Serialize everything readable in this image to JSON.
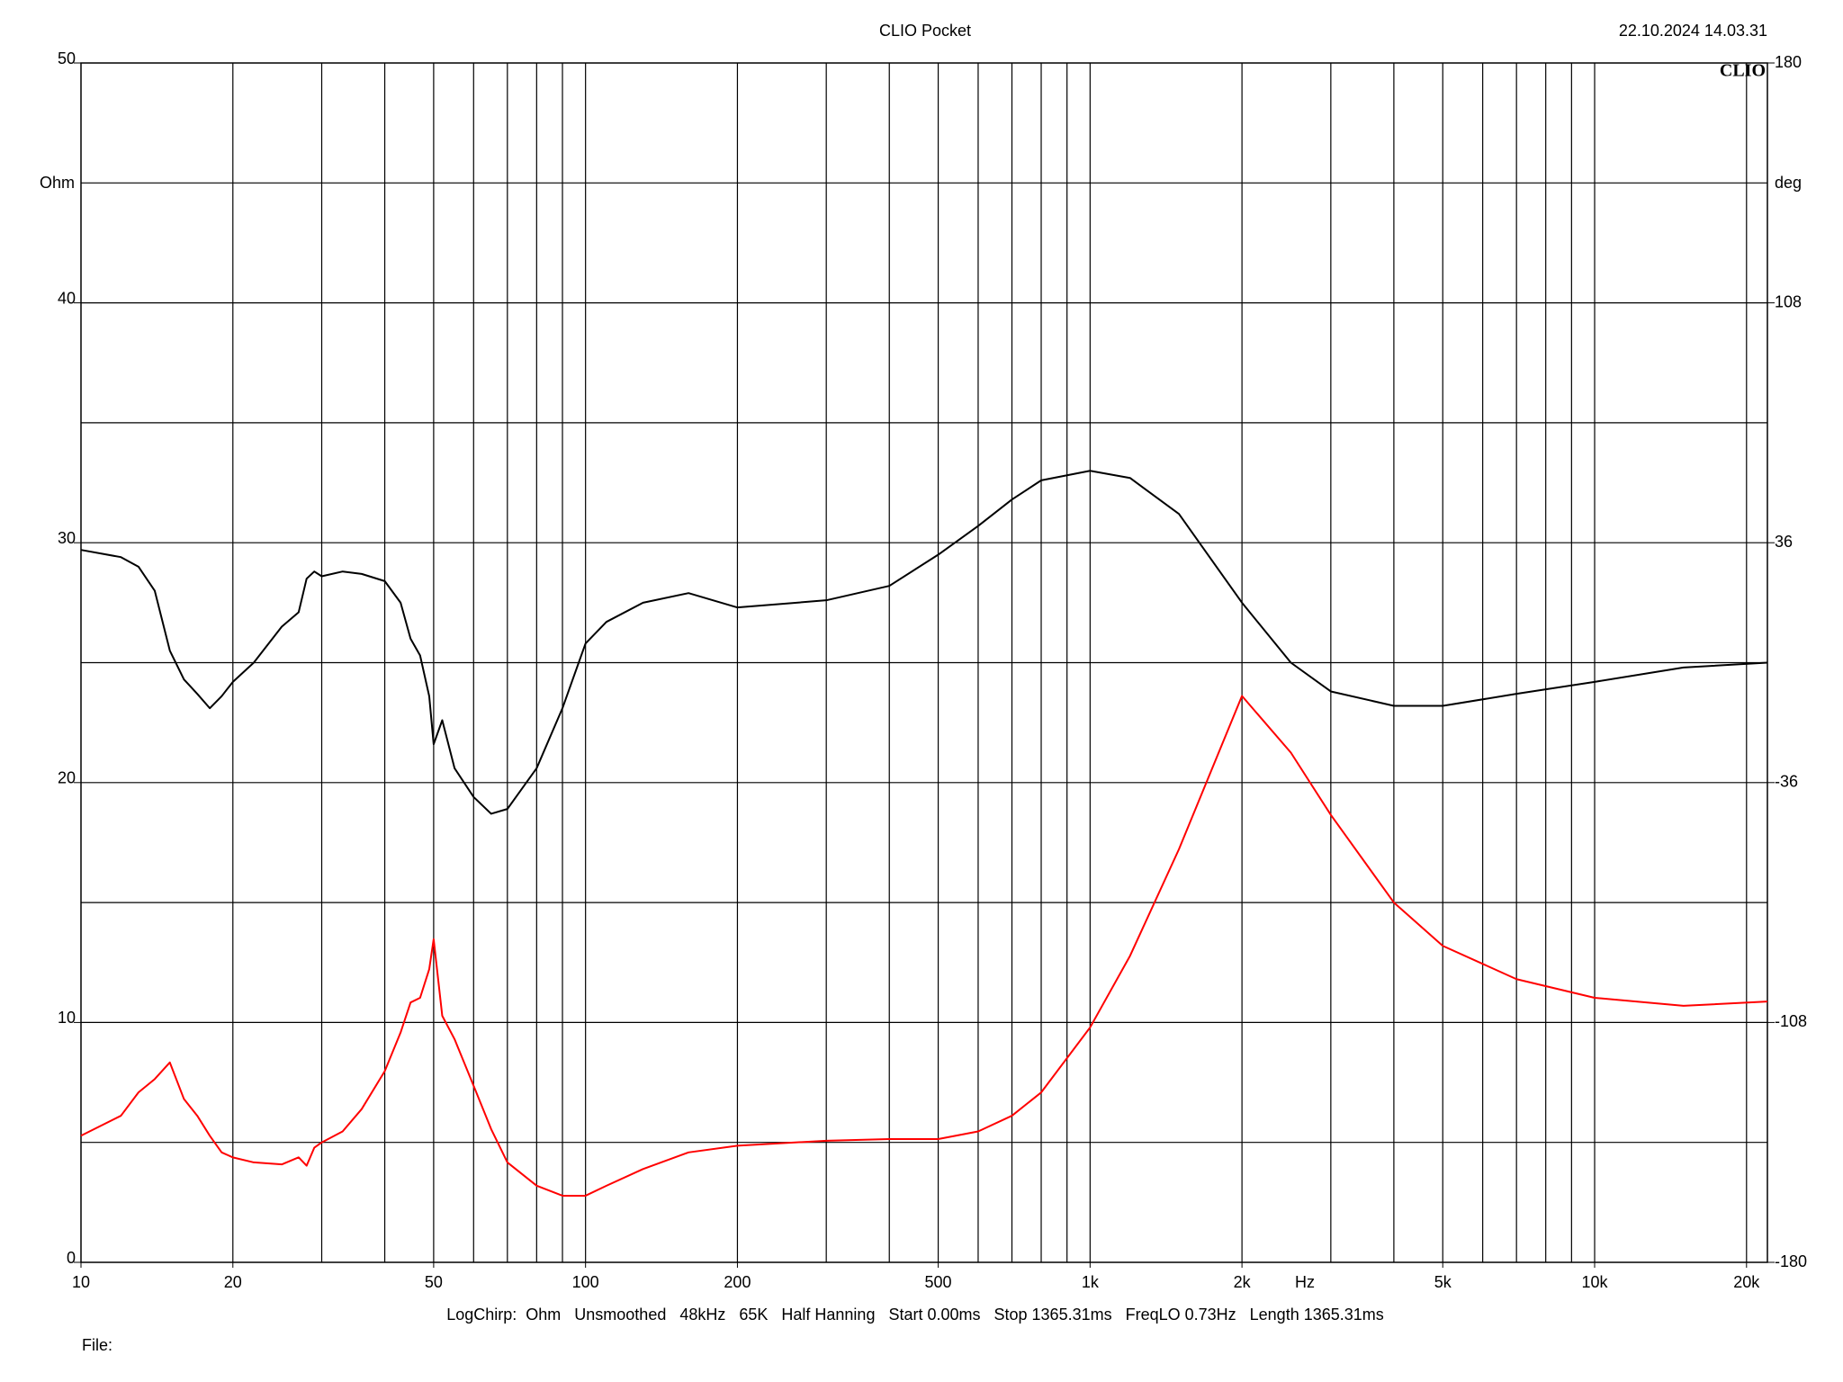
{
  "header": {
    "title": "CLIO Pocket",
    "date": "22.10.2024 14.03.31",
    "logo": "CLIO"
  },
  "chart_data": {
    "type": "line",
    "xscale": "log",
    "grid": true,
    "x": [
      10,
      12,
      13,
      14,
      15,
      16,
      17,
      18,
      19,
      20,
      22,
      25,
      27,
      28,
      29,
      30,
      33,
      36,
      40,
      43,
      45,
      47,
      49,
      50,
      52,
      55,
      60,
      65,
      70,
      80,
      90,
      100,
      110,
      130,
      160,
      200,
      300,
      400,
      500,
      600,
      700,
      800,
      1000,
      1200,
      1500,
      2000,
      2500,
      3000,
      4000,
      5000,
      7000,
      10000,
      15000,
      22000
    ],
    "series": [
      {
        "color": "#000000",
        "values": [
          29.7,
          29.4,
          29.0,
          28.0,
          25.5,
          24.3,
          23.7,
          23.1,
          23.6,
          24.2,
          25.0,
          26.5,
          27.1,
          28.5,
          28.8,
          28.6,
          28.8,
          28.7,
          28.4,
          27.5,
          26.0,
          25.3,
          23.6,
          21.6,
          22.6,
          20.6,
          19.4,
          18.7,
          18.9,
          20.6,
          23.1,
          25.8,
          26.7,
          27.5,
          27.9,
          27.3,
          27.6,
          28.2,
          29.5,
          30.7,
          31.8,
          32.6,
          33.0,
          32.7,
          31.2,
          27.5,
          25.0,
          23.8,
          23.2,
          23.2,
          23.7,
          24.2,
          24.8,
          25.0
        ]
      },
      {
        "color": "#ff0000",
        "axis": "y2",
        "values": [
          -142,
          -136,
          -129,
          -125,
          -120,
          -131,
          -136,
          -142,
          -147,
          -148.5,
          -150,
          -150.6,
          -148.5,
          -151,
          -145.6,
          -144,
          -140.7,
          -134,
          -122.6,
          -111,
          -102,
          -100.6,
          -92,
          -83,
          -106,
          -113,
          -127,
          -140,
          -150,
          -157,
          -160,
          -160,
          -157,
          -152,
          -147,
          -145,
          -143.5,
          -143,
          -143,
          -140.7,
          -136,
          -129,
          -109.5,
          -88,
          -56,
          -10,
          -27,
          -45.7,
          -72,
          -85,
          -95,
          -100.6,
          -103,
          -101.7
        ]
      }
    ],
    "xlim": [
      10,
      22000
    ],
    "xticks": [
      10,
      20,
      50,
      100,
      200,
      500,
      {
        "value": 1000,
        "label": "1k"
      },
      {
        "value": 2000,
        "label": "2k"
      },
      {
        "value": 5000,
        "label": "5k"
      },
      {
        "value": 10000,
        "label": "10k"
      },
      {
        "value": 20000,
        "label": "20k"
      }
    ],
    "xgrid": [
      20,
      30,
      40,
      50,
      60,
      70,
      80,
      90,
      100,
      200,
      300,
      400,
      500,
      600,
      700,
      800,
      900,
      1000,
      2000,
      3000,
      4000,
      5000,
      6000,
      7000,
      8000,
      9000,
      10000,
      20000
    ],
    "xlabel": "Hz",
    "ylim": [
      0,
      50
    ],
    "yticks": [
      0,
      10,
      20,
      30,
      40,
      50
    ],
    "ygrid": [
      5,
      10,
      15,
      20,
      25,
      30,
      35,
      40,
      45
    ],
    "ylabel": "Ohm",
    "y2lim": [
      -180,
      180
    ],
    "y2ticks": [
      -180,
      -108,
      -36,
      36,
      108,
      180
    ],
    "y2label": "deg"
  },
  "footer": {
    "settings": "LogChirp:  Ohm   Unsmoothed   48kHz   65K   Half Hanning   Start 0.00ms   Stop 1365.31ms   FreqLO 0.73Hz   Length 1365.31ms",
    "file": "File:"
  }
}
